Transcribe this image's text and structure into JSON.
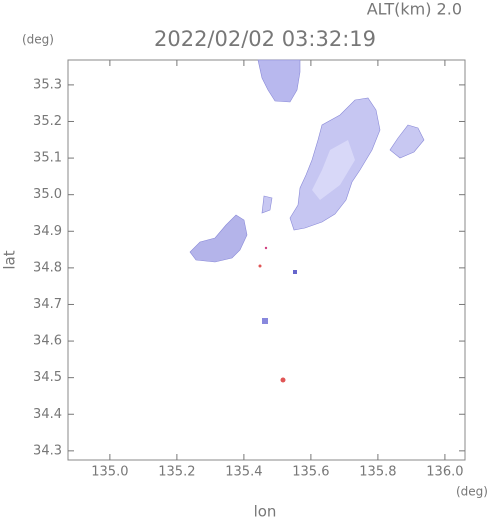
{
  "chart_data": {
    "type": "map",
    "subtitle": "ALT(km) 2.0",
    "title": "2022/02/02 03:32:19",
    "xlabel": "lon",
    "ylabel": "lat",
    "xunit": "(deg)",
    "yunit": "(deg)",
    "xlim": [
      134.875,
      136.06
    ],
    "ylim": [
      34.275,
      35.368
    ],
    "xticks": [
      {
        "value": 135,
        "label": "135.0"
      },
      135.2,
      135.4,
      135.6,
      135.8,
      {
        "value": 136,
        "label": "136.0"
      }
    ],
    "yticks": [
      34.3,
      34.4,
      34.5,
      34.6,
      34.7,
      34.8,
      34.9,
      {
        "value": 35,
        "label": "35.0"
      },
      35.1,
      35.2,
      35.3
    ]
  }
}
